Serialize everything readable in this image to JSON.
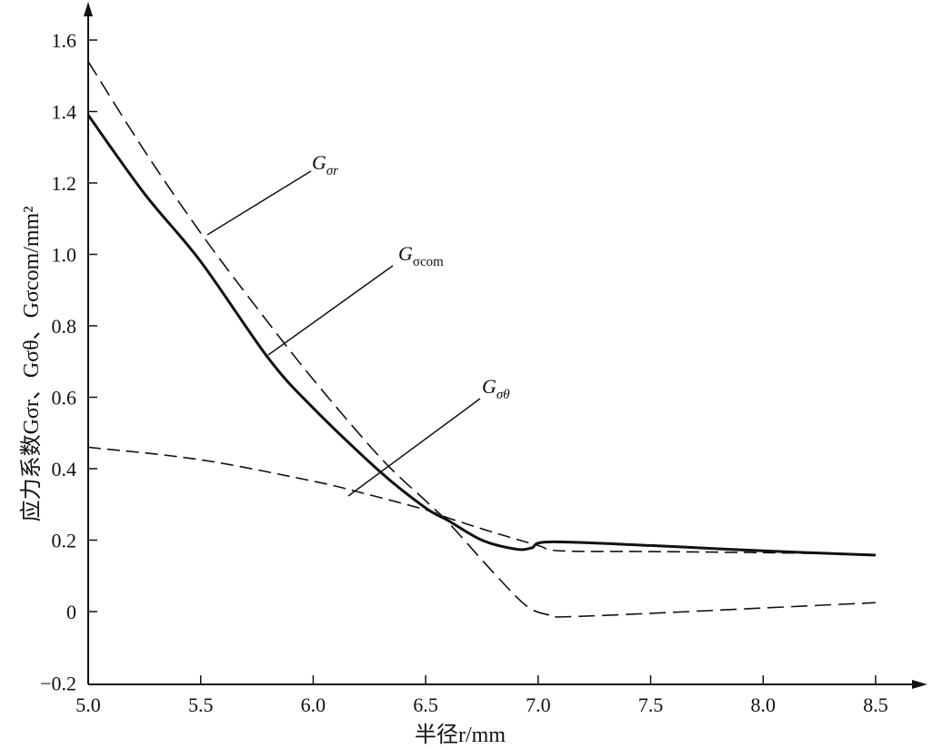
{
  "chart_data": {
    "type": "line",
    "title": "",
    "xlabel": "半径r/mm",
    "ylabel": "应力系数Gσr、Gσθ、Gσcom/mm²",
    "xlim": [
      5.0,
      8.5
    ],
    "ylim": [
      -0.2,
      1.6
    ],
    "xticks": [
      "5.0",
      "5.5",
      "6.0",
      "6.5",
      "7.0",
      "7.5",
      "8.0",
      "8.5"
    ],
    "xtick_values": [
      5.0,
      5.5,
      6.0,
      6.5,
      7.0,
      7.5,
      8.0,
      8.5
    ],
    "yticks": [
      "−0.2",
      "0",
      "0.2",
      "0.4",
      "0.6",
      "0.8",
      "1.0",
      "1.2",
      "1.4",
      "1.6"
    ],
    "ytick_values": [
      -0.2,
      0,
      0.2,
      0.4,
      0.6,
      0.8,
      1.0,
      1.2,
      1.4,
      1.6
    ],
    "grid": false,
    "series": [
      {
        "name": "Gσr",
        "style": "dashed-long",
        "color": "#111111",
        "x": [
          5.0,
          5.25,
          5.5,
          5.75,
          6.0,
          6.3,
          6.5,
          6.6,
          6.8,
          6.95,
          7.05,
          7.1,
          7.5,
          8.0,
          8.5
        ],
        "y": [
          1.54,
          1.29,
          1.06,
          0.85,
          0.65,
          0.43,
          0.31,
          0.25,
          0.11,
          0.015,
          -0.01,
          -0.015,
          -0.005,
          0.01,
          0.025
        ]
      },
      {
        "name": "Gσcom",
        "style": "solid",
        "color": "#111111",
        "x": [
          5.0,
          5.25,
          5.5,
          5.8,
          6.0,
          6.3,
          6.5,
          6.6,
          6.75,
          6.9,
          6.97,
          7.05,
          7.5,
          8.0,
          8.5
        ],
        "y": [
          1.39,
          1.17,
          0.98,
          0.71,
          0.57,
          0.39,
          0.29,
          0.255,
          0.2,
          0.175,
          0.178,
          0.195,
          0.185,
          0.17,
          0.158
        ]
      },
      {
        "name": "Gσθ",
        "style": "dashed",
        "color": "#111111",
        "x": [
          5.0,
          5.5,
          6.0,
          6.2,
          6.5,
          6.6,
          6.8,
          7.0,
          7.1,
          7.5,
          8.0,
          8.5
        ],
        "y": [
          0.46,
          0.425,
          0.365,
          0.335,
          0.285,
          0.262,
          0.222,
          0.185,
          0.17,
          0.168,
          0.165,
          0.16
        ]
      }
    ],
    "annotations": [
      {
        "label": "G",
        "sub": "σr",
        "points_to": "Gσr"
      },
      {
        "label": "G",
        "sub": "σcom",
        "points_to": "Gσcom"
      },
      {
        "label": "G",
        "sub": "σθ",
        "points_to": "Gσθ"
      }
    ]
  }
}
